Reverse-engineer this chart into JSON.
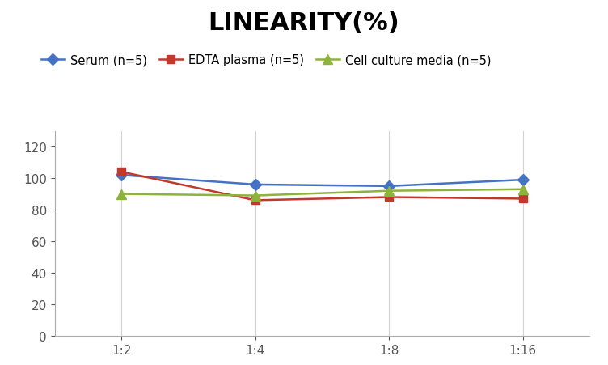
{
  "title": "LINEARITY(%)",
  "title_fontsize": 22,
  "title_fontweight": "bold",
  "x_labels": [
    "1:2",
    "1:4",
    "1:8",
    "1:16"
  ],
  "x_positions": [
    0,
    1,
    2,
    3
  ],
  "series": [
    {
      "label": "Serum (n=5)",
      "color": "#4472C4",
      "marker": "D",
      "markersize": 7,
      "values": [
        102,
        96,
        95,
        99
      ]
    },
    {
      "label": "EDTA plasma (n=5)",
      "color": "#C0392B",
      "marker": "s",
      "markersize": 7,
      "values": [
        104,
        86,
        88,
        87
      ]
    },
    {
      "label": "Cell culture media (n=5)",
      "color": "#8DB33A",
      "marker": "^",
      "markersize": 8,
      "values": [
        90,
        89,
        92,
        93
      ]
    }
  ],
  "ylim": [
    0,
    130
  ],
  "yticks": [
    0,
    20,
    40,
    60,
    80,
    100,
    120
  ],
  "grid_color": "#D3D3D3",
  "background_color": "#FFFFFF",
  "legend_fontsize": 10.5
}
